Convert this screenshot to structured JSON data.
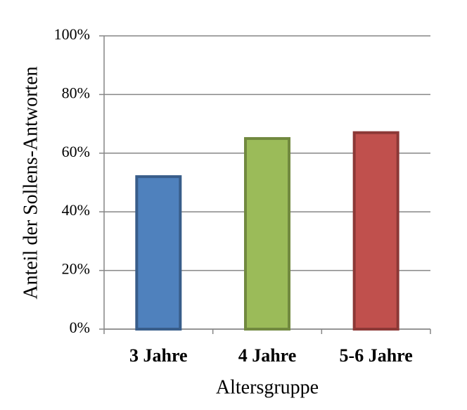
{
  "chart_data": {
    "type": "bar",
    "categories": [
      "3 Jahre",
      "4 Jahre",
      "5-6 Jahre"
    ],
    "values": [
      52,
      65,
      67
    ],
    "colors": [
      "#4f81bd",
      "#9bbb59",
      "#c0504d"
    ],
    "edge_colors": [
      "#385d8a",
      "#71893f",
      "#8c3836"
    ],
    "xlabel": "Altersgruppe",
    "ylabel": "Anteil der Sollens-Antworten",
    "ylim": [
      0,
      100
    ],
    "yticks": [
      {
        "value": 0,
        "label": "0%"
      },
      {
        "value": 20,
        "label": "20%"
      },
      {
        "value": 40,
        "label": "40%"
      },
      {
        "value": 60,
        "label": "60%"
      },
      {
        "value": 80,
        "label": "80%"
      },
      {
        "value": 100,
        "label": "100%"
      }
    ],
    "grid": true
  }
}
